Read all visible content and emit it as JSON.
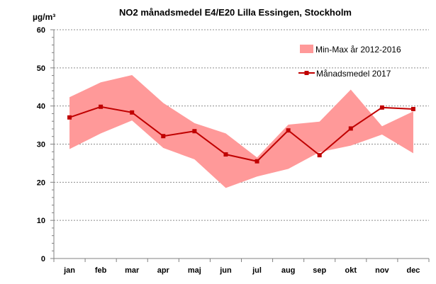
{
  "chart_data": {
    "type": "line",
    "title": "NO2 månadsmedel E4/E20 Lilla Essingen, Stockholm",
    "ylabel": "µg/m³",
    "xlabel": "",
    "categories": [
      "jan",
      "feb",
      "mar",
      "apr",
      "maj",
      "jun",
      "jul",
      "aug",
      "sep",
      "okt",
      "nov",
      "dec"
    ],
    "ylim": [
      0,
      60
    ],
    "yticks": [
      0,
      10,
      20,
      30,
      40,
      50,
      60
    ],
    "grid": "horizontal dashed",
    "legend_position": "top-right",
    "range_band": {
      "name": "Min-Max år 2012-2016",
      "color": "#ff9999",
      "min": [
        28.7,
        32.8,
        36.2,
        29.0,
        26.0,
        18.5,
        21.5,
        23.5,
        27.9,
        29.6,
        32.5,
        27.6
      ],
      "max": [
        42.3,
        46.2,
        48.1,
        40.8,
        35.5,
        32.8,
        26.5,
        35.1,
        35.9,
        44.3,
        34.7,
        38.6
      ]
    },
    "series": [
      {
        "name": "Månadsmedel 2017",
        "color": "#c00000",
        "marker": "square",
        "values": [
          37.0,
          39.8,
          38.3,
          32.1,
          33.4,
          27.3,
          25.5,
          33.6,
          27.1,
          34.1,
          39.6,
          39.2
        ]
      }
    ]
  }
}
